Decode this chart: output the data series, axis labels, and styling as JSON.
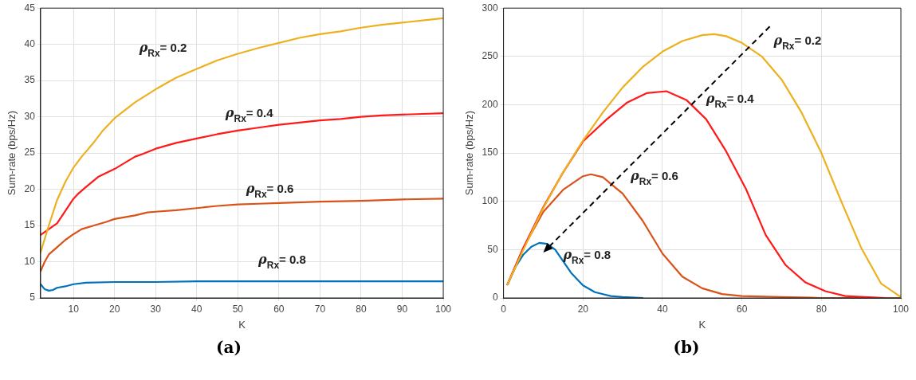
{
  "chart_data": [
    {
      "type": "line",
      "xlabel": "K",
      "ylabel": "Sum-rate (bps/Hz)",
      "annotations": [
        "(a)"
      ],
      "xlim": [
        2,
        100
      ],
      "xticks": [
        10,
        20,
        30,
        40,
        50,
        60,
        70,
        80,
        90,
        100
      ],
      "ylim": [
        5,
        45
      ],
      "yticks": [
        5,
        10,
        15,
        20,
        25,
        30,
        35,
        40,
        45
      ],
      "grid": true,
      "legend": false,
      "marker": "none",
      "line_style": "solid",
      "series": [
        {
          "name": "ρ$_{Rx}$= 0.2",
          "color": "#edb120",
          "x": [
            2,
            4,
            6,
            8,
            10,
            12,
            15,
            17,
            20,
            25,
            30,
            35,
            40,
            45,
            50,
            55,
            60,
            65,
            70,
            75,
            80,
            85,
            90,
            95,
            100
          ],
          "values": [
            11.3,
            15,
            18.5,
            21,
            23,
            24.5,
            26.5,
            28,
            29.8,
            32,
            33.8,
            35.4,
            36.6,
            37.8,
            38.7,
            39.5,
            40.2,
            40.9,
            41.4,
            41.8,
            42.3,
            42.7,
            43,
            43.3,
            43.6
          ]
        },
        {
          "name": "ρ$_{Rx}$= 0.4",
          "color": "#ff1a1a",
          "x": [
            2,
            4,
            6,
            8,
            10,
            11,
            13,
            16,
            20,
            25,
            27,
            30,
            35,
            40,
            45,
            50,
            55,
            60,
            65,
            70,
            75,
            80,
            85,
            90,
            95,
            100
          ],
          "values": [
            13.7,
            14.5,
            15.3,
            17,
            18.7,
            19.3,
            20.3,
            21.7,
            22.8,
            24.5,
            24.9,
            25.6,
            26.4,
            27,
            27.6,
            28.1,
            28.5,
            28.9,
            29.2,
            29.5,
            29.7,
            30,
            30.2,
            30.3,
            30.4,
            30.5
          ]
        },
        {
          "name": "ρ$_{Rx}$= 0.6",
          "color": "#d95319",
          "x": [
            2,
            3,
            4,
            6,
            8,
            10,
            12,
            15,
            18,
            20,
            25,
            28,
            30,
            35,
            40,
            45,
            50,
            55,
            60,
            70,
            80,
            90,
            100
          ],
          "values": [
            8.7,
            10,
            11,
            12,
            13,
            13.8,
            14.5,
            15,
            15.5,
            15.9,
            16.4,
            16.8,
            16.9,
            17.1,
            17.4,
            17.7,
            17.9,
            18,
            18.1,
            18.3,
            18.4,
            18.6,
            18.7
          ]
        },
        {
          "name": "ρ$_{Rx}$= 0.8",
          "color": "#0072bd",
          "x": [
            2,
            3,
            4,
            5,
            6,
            8,
            10,
            13,
            20,
            30,
            40,
            50,
            60,
            80,
            100
          ],
          "values": [
            6.9,
            6.2,
            6,
            6.1,
            6.4,
            6.6,
            6.9,
            7.1,
            7.2,
            7.2,
            7.3,
            7.3,
            7.3,
            7.3,
            7.3
          ]
        }
      ]
    },
    {
      "type": "line",
      "xlabel": "K",
      "ylabel": "Sum-rate (bps/Hz)",
      "annotations": [
        "(b)"
      ],
      "xlim": [
        0,
        100
      ],
      "xticks": [
        0,
        20,
        40,
        60,
        80,
        100
      ],
      "ylim": [
        0,
        300
      ],
      "yticks": [
        0,
        50,
        100,
        150,
        200,
        250,
        300
      ],
      "grid": true,
      "legend": false,
      "marker": "none",
      "line_style": "solid",
      "series": [
        {
          "name": "ρ$_{Rx}$= 0.2",
          "color": "#edb120",
          "x": [
            1,
            5,
            10,
            15,
            20,
            25,
            30,
            35,
            40,
            45,
            50,
            53,
            56,
            60,
            65,
            70,
            75,
            80,
            85,
            90,
            95,
            100
          ],
          "values": [
            14,
            50,
            93,
            130,
            163,
            192,
            218,
            239,
            255,
            266,
            272,
            273,
            271,
            264,
            250,
            226,
            192,
            150,
            100,
            52,
            15,
            1
          ]
        },
        {
          "name": "ρ$_{Rx}$= 0.4",
          "color": "#ff1a1a",
          "x": [
            1,
            5,
            10,
            15,
            20,
            26,
            31,
            36,
            41,
            46,
            51,
            56,
            61,
            66,
            71,
            76,
            81,
            86,
            91,
            96
          ],
          "values": [
            14,
            52,
            94,
            130,
            162,
            185,
            202,
            212,
            214,
            205,
            185,
            152,
            113,
            65,
            34,
            16,
            7,
            2,
            1,
            0
          ]
        },
        {
          "name": "ρ$_{Rx}$= 0.6",
          "color": "#d95319",
          "x": [
            1,
            5,
            10,
            15,
            20,
            22,
            25,
            30,
            35,
            40,
            45,
            50,
            55,
            60,
            70,
            80,
            100
          ],
          "values": [
            14,
            52,
            89,
            112,
            126,
            128,
            125,
            108,
            80,
            46,
            22,
            10,
            4,
            2,
            1,
            0,
            0
          ]
        },
        {
          "name": "ρ$_{Rx}$= 0.8",
          "color": "#0072bd",
          "x": [
            1,
            3,
            5,
            7,
            9,
            11,
            13,
            15,
            17,
            20,
            23,
            27,
            30,
            35
          ],
          "values": [
            14,
            32,
            45,
            53,
            57,
            56,
            50,
            38,
            26,
            13,
            6,
            2,
            1,
            0
          ]
        }
      ]
    }
  ]
}
